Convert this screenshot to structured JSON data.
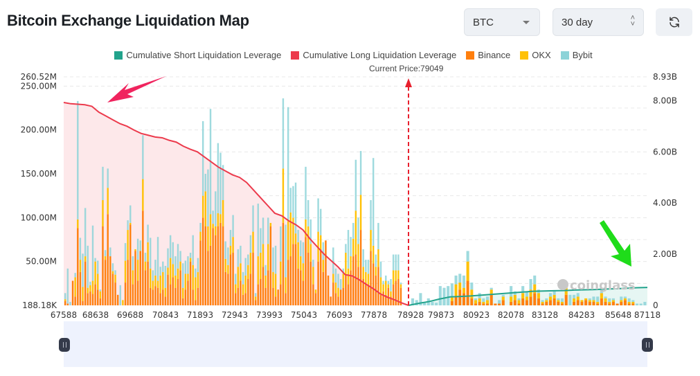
{
  "header": {
    "title": "Bitcoin Exchange Liquidation Map",
    "coin_select": {
      "value": "BTC",
      "icon": "caret-down-icon"
    },
    "period_select": {
      "value": "30 day",
      "icon": "updown-icon"
    },
    "refresh_button": {
      "icon": "refresh-icon"
    }
  },
  "colors": {
    "short_cum": "#22a38c",
    "long_cum": "#ec3a4c",
    "binance": "#ff7f0e",
    "okx": "#ffc107",
    "bybit": "#8dd3d8",
    "long_fill": "#fde8ea",
    "short_fill": "#e6f6f3",
    "current_price_line": "#e8202e"
  },
  "chart_data": {
    "type": "bar",
    "title": "Bitcoin Exchange Liquidation Map",
    "legend": [
      {
        "name": "Cumulative Short Liquidation Leverage",
        "color": "#22a38c"
      },
      {
        "name": "Cumulative Long Liquidation Leverage",
        "color": "#ec3a4c"
      },
      {
        "name": "Binance",
        "color": "#ff7f0e"
      },
      {
        "name": "OKX",
        "color": "#ffc107"
      },
      {
        "name": "Bybit",
        "color": "#8dd3d8"
      }
    ],
    "legend_position": "top-center",
    "current_price_label": "Current Price:79049",
    "current_price": 79049,
    "x_tick_labels": [
      "67588",
      "68638",
      "69688",
      "70843",
      "71893",
      "72943",
      "73993",
      "75043",
      "76093",
      "77878",
      "78928",
      "79873",
      "80923",
      "82078",
      "83128",
      "84283",
      "85648",
      "87118"
    ],
    "x_range": [
      67588,
      87118
    ],
    "y_left": {
      "ticks": [
        "188.18K",
        "50.00M",
        "100.00M",
        "150.00M",
        "200.00M",
        "250.00M",
        "260.52M"
      ],
      "range_millions": [
        0.18818,
        260.52
      ]
    },
    "y_right": {
      "ticks": [
        "0",
        "2.00B",
        "4.00B",
        "6.00B",
        "8.00B",
        "8.93B"
      ],
      "range_billions": [
        0,
        8.93
      ]
    },
    "grid": true,
    "bars_millions": {
      "note": "stacked [binance, okx, bybit] per price level, left to right",
      "values": [
        [
          5,
          2,
          7
        ],
        [
          2,
          0,
          40
        ],
        [
          0,
          0,
          4
        ],
        [
          28,
          0,
          0
        ],
        [
          10,
          22,
          5
        ],
        [
          88,
          10,
          135
        ],
        [
          38,
          14,
          25
        ],
        [
          5,
          16,
          38
        ],
        [
          50,
          6,
          55
        ],
        [
          14,
          6,
          48
        ],
        [
          16,
          7,
          4
        ],
        [
          13,
          15,
          63
        ],
        [
          24,
          26,
          4
        ],
        [
          18,
          18,
          15
        ],
        [
          8,
          8,
          2
        ],
        [
          90,
          30,
          38
        ],
        [
          52,
          4,
          7
        ],
        [
          104,
          30,
          22
        ],
        [
          56,
          0,
          10
        ],
        [
          36,
          3,
          9
        ],
        [
          26,
          9,
          5
        ],
        [
          12,
          0,
          0
        ],
        [
          0,
          0,
          23
        ],
        [
          0,
          6,
          0
        ],
        [
          26,
          25,
          20
        ],
        [
          52,
          34,
          11
        ],
        [
          92,
          2,
          20
        ],
        [
          24,
          16,
          16
        ],
        [
          62,
          2,
          0
        ],
        [
          28,
          24,
          24
        ],
        [
          62,
          0,
          12
        ],
        [
          108,
          36,
          50
        ],
        [
          40,
          10,
          10
        ],
        [
          50,
          22,
          20
        ],
        [
          20,
          22,
          35
        ],
        [
          18,
          10,
          12
        ],
        [
          22,
          12,
          18
        ],
        [
          20,
          8,
          50
        ],
        [
          14,
          20,
          10
        ],
        [
          18,
          20,
          12
        ],
        [
          10,
          10,
          25
        ],
        [
          35,
          8,
          22
        ],
        [
          24,
          30,
          26
        ],
        [
          32,
          15,
          25
        ],
        [
          20,
          14,
          22
        ],
        [
          30,
          12,
          28
        ],
        [
          40,
          10,
          12
        ],
        [
          8,
          12,
          28
        ],
        [
          18,
          18,
          15
        ],
        [
          28,
          8,
          20
        ],
        [
          50,
          4,
          6
        ],
        [
          18,
          28,
          34
        ],
        [
          6,
          26,
          10
        ],
        [
          20,
          18,
          16
        ],
        [
          74,
          10,
          10
        ],
        [
          100,
          25,
          85
        ],
        [
          90,
          40,
          20
        ],
        [
          62,
          28,
          65
        ],
        [
          68,
          36,
          120
        ],
        [
          88,
          5,
          15
        ],
        [
          80,
          10,
          40
        ],
        [
          90,
          15,
          80
        ],
        [
          94,
          10,
          70
        ],
        [
          90,
          30,
          40
        ],
        [
          38,
          15,
          20
        ],
        [
          36,
          10,
          20
        ],
        [
          58,
          10,
          18
        ],
        [
          60,
          18,
          25
        ],
        [
          14,
          10,
          12
        ],
        [
          20,
          24,
          20
        ],
        [
          28,
          20,
          20
        ],
        [
          12,
          12,
          14
        ],
        [
          14,
          20,
          20
        ],
        [
          30,
          16,
          12
        ],
        [
          36,
          24,
          20
        ],
        [
          60,
          24,
          30
        ],
        [
          6,
          4,
          4
        ],
        [
          24,
          32,
          60
        ],
        [
          30,
          30,
          28
        ],
        [
          44,
          26,
          30
        ],
        [
          20,
          14,
          12
        ],
        [
          40,
          30,
          30
        ],
        [
          90,
          4,
          0
        ],
        [
          20,
          18,
          28
        ],
        [
          10,
          26,
          32
        ],
        [
          18,
          0,
          0
        ],
        [
          24,
          26,
          40
        ],
        [
          94,
          62,
          80
        ],
        [
          14,
          18,
          60
        ],
        [
          52,
          44,
          130
        ],
        [
          56,
          50,
          28
        ],
        [
          70,
          30,
          36
        ],
        [
          70,
          12,
          58
        ],
        [
          42,
          30,
          14
        ],
        [
          40,
          16,
          18
        ],
        [
          28,
          20,
          24
        ],
        [
          78,
          20,
          60
        ],
        [
          60,
          30,
          30
        ],
        [
          50,
          20,
          28
        ],
        [
          24,
          20,
          8
        ],
        [
          14,
          4,
          0
        ],
        [
          50,
          34,
          38
        ],
        [
          64,
          16,
          30
        ],
        [
          38,
          14,
          20
        ],
        [
          74,
          0,
          0
        ],
        [
          34,
          0,
          0
        ],
        [
          10,
          0,
          0
        ],
        [
          26,
          10,
          30
        ],
        [
          14,
          12,
          16
        ],
        [
          10,
          10,
          16
        ],
        [
          18,
          0,
          12
        ],
        [
          20,
          16,
          6
        ],
        [
          34,
          26,
          10
        ],
        [
          24,
          18,
          44
        ],
        [
          40,
          16,
          22
        ],
        [
          56,
          20,
          18
        ],
        [
          58,
          50,
          58
        ],
        [
          44,
          26,
          30
        ],
        [
          86,
          40,
          50
        ],
        [
          30,
          14,
          20
        ],
        [
          26,
          12,
          14
        ],
        [
          24,
          12,
          16
        ],
        [
          62,
          24,
          34
        ],
        [
          48,
          20,
          100
        ],
        [
          34,
          10,
          14
        ],
        [
          44,
          20,
          30
        ],
        [
          12,
          20,
          18
        ],
        [
          16,
          8,
          4
        ],
        [
          12,
          16,
          6
        ],
        [
          20,
          4,
          4
        ],
        [
          10,
          6,
          14
        ],
        [
          24,
          16,
          18
        ],
        [
          28,
          12,
          18
        ],
        [
          30,
          10,
          18
        ],
        [
          20,
          4,
          2
        ],
        [
          0,
          0,
          0
        ]
      ],
      "short_side_values": [
        [
          0,
          0,
          8
        ],
        [
          0,
          0,
          6
        ],
        [
          0,
          0,
          14
        ],
        [
          0,
          0,
          4
        ],
        [
          0,
          0,
          8
        ],
        [
          0,
          0,
          4
        ],
        [
          0,
          0,
          3
        ],
        [
          0,
          0,
          22
        ],
        [
          0,
          0,
          20
        ],
        [
          0,
          0,
          22
        ],
        [
          5,
          4,
          16
        ],
        [
          10,
          14,
          10
        ],
        [
          18,
          8,
          10
        ],
        [
          14,
          6,
          14
        ],
        [
          28,
          22,
          12
        ],
        [
          8,
          10,
          8
        ],
        [
          2,
          4,
          2
        ],
        [
          4,
          4,
          6
        ],
        [
          2,
          2,
          4
        ],
        [
          2,
          4,
          4
        ],
        [
          12,
          6,
          2
        ],
        [
          2,
          0,
          0
        ],
        [
          2,
          0,
          4
        ],
        [
          6,
          4,
          2
        ],
        [
          0,
          0,
          0
        ],
        [
          4,
          6,
          12
        ],
        [
          6,
          6,
          4
        ],
        [
          2,
          4,
          2
        ],
        [
          8,
          6,
          8
        ],
        [
          6,
          4,
          6
        ],
        [
          10,
          8,
          12
        ],
        [
          14,
          10,
          10
        ],
        [
          8,
          6,
          4
        ],
        [
          2,
          2,
          2
        ],
        [
          4,
          2,
          2
        ],
        [
          6,
          4,
          4
        ],
        [
          8,
          4,
          4
        ],
        [
          4,
          2,
          2
        ],
        [
          2,
          2,
          4
        ],
        [
          12,
          8,
          4
        ],
        [
          0,
          0,
          12
        ],
        [
          4,
          4,
          4
        ],
        [
          6,
          4,
          4
        ],
        [
          4,
          2,
          0
        ],
        [
          6,
          2,
          0
        ],
        [
          4,
          2,
          2
        ],
        [
          4,
          2,
          4
        ],
        [
          2,
          2,
          6
        ],
        [
          8,
          6,
          4
        ],
        [
          4,
          4,
          2
        ],
        [
          2,
          2,
          4
        ],
        [
          4,
          2,
          2
        ],
        [
          2,
          0,
          0
        ],
        [
          4,
          2,
          4
        ],
        [
          6,
          2,
          2
        ],
        [
          2,
          2,
          4
        ],
        [
          2,
          2,
          2
        ],
        [
          0,
          0,
          2
        ],
        [
          0,
          0,
          2
        ],
        [
          0,
          0,
          4
        ]
      ]
    },
    "cumulative_long_billions": [
      7.93,
      7.88,
      7.86,
      7.84,
      7.78,
      7.55,
      7.4,
      7.25,
      7.1,
      7.0,
      6.85,
      6.72,
      6.65,
      6.58,
      6.55,
      6.45,
      6.38,
      6.22,
      6.1,
      6.0,
      5.8,
      5.6,
      5.4,
      5.25,
      5.1,
      5.0,
      4.8,
      4.5,
      4.2,
      3.9,
      3.6,
      3.5,
      3.3,
      3.15,
      2.95,
      2.6,
      2.3,
      2.0,
      1.75,
      1.5,
      1.2,
      1.15,
      1.0,
      0.82,
      0.65,
      0.45,
      0.32,
      0.22,
      0.1,
      0.0
    ],
    "cumulative_short_billions": [
      0.0,
      0.08,
      0.15,
      0.25,
      0.33,
      0.35,
      0.37,
      0.4,
      0.43,
      0.46,
      0.49,
      0.52,
      0.55,
      0.56,
      0.57,
      0.58,
      0.6,
      0.61,
      0.62,
      0.64,
      0.65,
      0.67,
      0.69,
      0.7
    ]
  },
  "watermark": "coinglass",
  "annotations": [
    {
      "type": "arrow",
      "color": "#f0245e",
      "points_to": "cumulative-long-peak"
    },
    {
      "type": "arrow",
      "color": "#1fdc1a",
      "points_to": "cumulative-short-end"
    }
  ],
  "zoom_slider": {
    "start": 0,
    "end": 1
  }
}
